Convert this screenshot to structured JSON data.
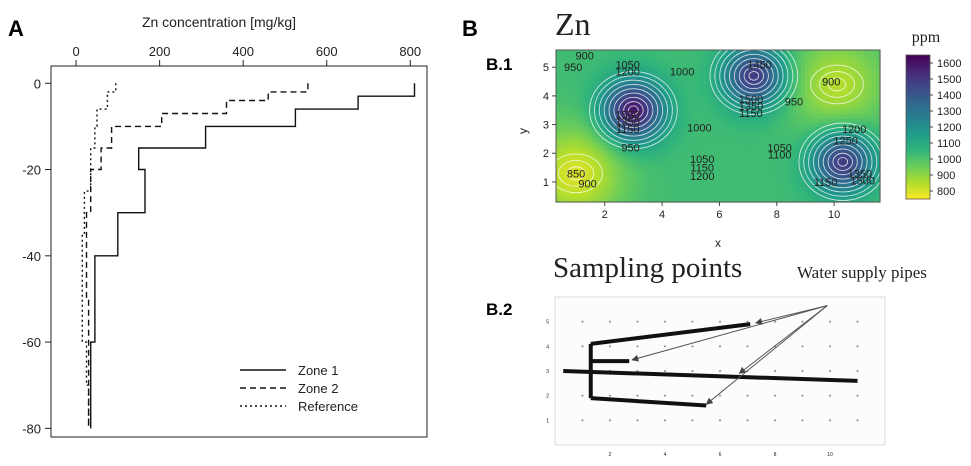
{
  "panels": {
    "a": "A",
    "b": "B",
    "b1": "B.1",
    "b2": "B.2"
  },
  "chart_data": [
    {
      "type": "line",
      "title": "",
      "xlabel": "Zn concentration [mg/kg]",
      "ylabel": "",
      "xlim": [
        -60,
        840
      ],
      "ylim": [
        -82,
        4
      ],
      "xticks": [
        0,
        200,
        400,
        600,
        800
      ],
      "yticks": [
        0,
        -20,
        -40,
        -60,
        -80
      ],
      "step_profile": true,
      "legend": {
        "position": "bottom-right"
      },
      "series": [
        {
          "name": "Zone 1",
          "dash": "solid",
          "x": [
            810,
            810,
            675,
            675,
            525,
            525,
            310,
            310,
            150,
            150,
            165,
            165,
            100,
            100,
            45,
            45,
            35,
            35
          ],
          "y": [
            0,
            -3,
            -3,
            -6,
            -6,
            -10,
            -10,
            -15,
            -15,
            -20,
            -20,
            -30,
            -30,
            -40,
            -40,
            -60,
            -60,
            -80
          ]
        },
        {
          "name": "Zone 2",
          "dash": "dashed",
          "x": [
            555,
            555,
            460,
            460,
            360,
            360,
            205,
            205,
            85,
            85,
            60,
            60,
            35,
            35,
            25,
            25,
            30,
            30
          ],
          "y": [
            0,
            -2,
            -2,
            -4,
            -4,
            -7,
            -7,
            -10,
            -10,
            -15,
            -15,
            -20,
            -20,
            -30,
            -30,
            -50,
            -50,
            -80
          ]
        },
        {
          "name": "Reference",
          "dash": "dotted",
          "x": [
            95,
            95,
            75,
            75,
            50,
            50,
            45,
            45,
            35,
            35,
            20,
            20,
            15,
            15,
            25,
            25,
            30,
            30
          ],
          "y": [
            0,
            -2,
            -2,
            -6,
            -6,
            -10,
            -10,
            -15,
            -15,
            -25,
            -25,
            -35,
            -35,
            -60,
            -60,
            -70,
            -70,
            -80
          ]
        }
      ]
    },
    {
      "type": "heatmap",
      "title": "Zn",
      "xlabel": "x",
      "ylabel": "y",
      "xlim": [
        0.3,
        11.6
      ],
      "ylim": [
        0.3,
        5.6
      ],
      "xticks": [
        2,
        4,
        6,
        8,
        10
      ],
      "yticks": [
        1,
        2,
        3,
        4,
        5
      ],
      "colorbar": {
        "label": "ppm",
        "ticks": [
          1600,
          1500,
          1400,
          1300,
          1200,
          1100,
          1000,
          900,
          800
        ],
        "range": [
          750,
          1650
        ],
        "colors": [
          "#fde725",
          "#b5de2b",
          "#6ece58",
          "#35b779",
          "#1f9e89",
          "#26828e",
          "#31688e",
          "#3e4989",
          "#482878",
          "#440154"
        ]
      },
      "contour_labels": [
        {
          "text": "900",
          "x": 1.3,
          "y": 5.4
        },
        {
          "text": "950",
          "x": 0.9,
          "y": 5.0
        },
        {
          "text": "1050",
          "x": 2.8,
          "y": 5.1
        },
        {
          "text": "1200",
          "x": 2.8,
          "y": 4.85
        },
        {
          "text": "1000",
          "x": 4.7,
          "y": 4.85
        },
        {
          "text": "1450",
          "x": 7.4,
          "y": 5.1
        },
        {
          "text": "900",
          "x": 9.9,
          "y": 4.5
        },
        {
          "text": "950",
          "x": 8.6,
          "y": 3.8
        },
        {
          "text": "1500",
          "x": 7.1,
          "y": 3.9
        },
        {
          "text": "1350",
          "x": 7.1,
          "y": 3.65
        },
        {
          "text": "1150",
          "x": 7.1,
          "y": 3.4
        },
        {
          "text": "1000",
          "x": 5.3,
          "y": 2.9
        },
        {
          "text": "1550",
          "x": 2.8,
          "y": 3.35
        },
        {
          "text": "1350",
          "x": 2.8,
          "y": 3.1
        },
        {
          "text": "1150",
          "x": 2.8,
          "y": 2.85
        },
        {
          "text": "950",
          "x": 2.9,
          "y": 2.2
        },
        {
          "text": "850",
          "x": 1.0,
          "y": 1.3
        },
        {
          "text": "900",
          "x": 1.4,
          "y": 0.95
        },
        {
          "text": "1050",
          "x": 5.4,
          "y": 1.8
        },
        {
          "text": "1150",
          "x": 5.4,
          "y": 1.5
        },
        {
          "text": "1200",
          "x": 5.4,
          "y": 1.2
        },
        {
          "text": "1050",
          "x": 8.1,
          "y": 2.2
        },
        {
          "text": "1100",
          "x": 8.1,
          "y": 1.95
        },
        {
          "text": "1200",
          "x": 10.7,
          "y": 2.85
        },
        {
          "text": "1250",
          "x": 10.4,
          "y": 2.45
        },
        {
          "text": "1150",
          "x": 9.7,
          "y": 1.0
        },
        {
          "text": "1350",
          "x": 10.9,
          "y": 1.3
        },
        {
          "text": "1500",
          "x": 11.0,
          "y": 1.05
        }
      ],
      "extrema": [
        {
          "kind": "max",
          "value": 1600,
          "x": 3.0,
          "y": 3.5
        },
        {
          "kind": "max",
          "value": 1500,
          "x": 7.2,
          "y": 4.7
        },
        {
          "kind": "max",
          "value": 1500,
          "x": 10.3,
          "y": 1.7
        },
        {
          "kind": "min",
          "value": 800,
          "x": 1.0,
          "y": 1.3
        },
        {
          "kind": "min",
          "value": 850,
          "x": 10.1,
          "y": 4.4
        }
      ]
    },
    {
      "type": "scatter",
      "title": "Sampling points",
      "annotation": "Water supply pipes",
      "xticks": [
        2,
        4,
        6,
        8,
        10
      ],
      "yticks": [
        1,
        2,
        3,
        4,
        5
      ],
      "xlim": [
        0,
        12
      ],
      "ylim": [
        0,
        6
      ],
      "points": {
        "x_from": 1,
        "x_to": 11,
        "y_from": 1,
        "y_to": 5
      },
      "pipes": [
        [
          [
            0.3,
            3.0
          ],
          [
            11.0,
            2.6
          ]
        ],
        [
          [
            1.3,
            4.1
          ],
          [
            1.3,
            1.9
          ]
        ],
        [
          [
            1.3,
            4.1
          ],
          [
            7.1,
            4.9
          ]
        ],
        [
          [
            1.3,
            3.4
          ],
          [
            2.7,
            3.4
          ]
        ],
        [
          [
            1.3,
            1.9
          ],
          [
            5.5,
            1.6
          ]
        ]
      ],
      "arrows": [
        {
          "from": [
            9.9,
            5.65
          ],
          "to": [
            7.3,
            4.95
          ]
        },
        {
          "from": [
            9.9,
            5.65
          ],
          "to": [
            2.8,
            3.45
          ]
        },
        {
          "from": [
            9.9,
            5.65
          ],
          "to": [
            6.7,
            2.9
          ]
        },
        {
          "from": [
            9.9,
            5.65
          ],
          "to": [
            5.5,
            1.65
          ]
        }
      ]
    }
  ]
}
